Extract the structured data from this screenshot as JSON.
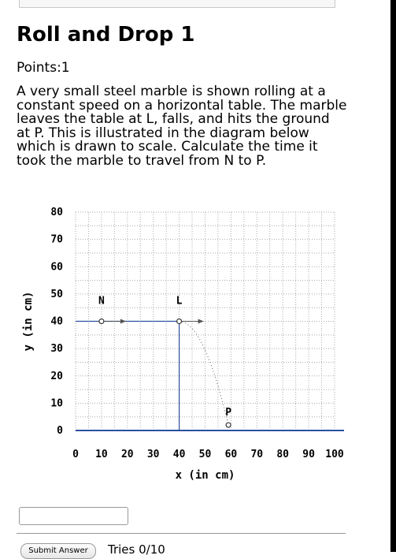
{
  "problem": {
    "title": "Roll and Drop 1",
    "points": "Points:1",
    "question": "A very small steel marble is shown rolling at a constant speed on a horizontal table. The marble leaves the table at L, falls, and hits the ground at P. This is illustrated in the diagram below which is drawn to scale. Calculate the time it took the marble to travel from N to P."
  },
  "chart_data": {
    "type": "scatter",
    "xlabel": "x (in cm)",
    "ylabel": "y (in cm)",
    "xlim": [
      0,
      100
    ],
    "ylim": [
      0,
      80
    ],
    "x_ticks": [
      "0",
      "10",
      "20",
      "30",
      "40",
      "50",
      "60",
      "70",
      "80",
      "90",
      "100"
    ],
    "y_ticks": [
      "0",
      "10",
      "20",
      "30",
      "40",
      "50",
      "60",
      "70",
      "80"
    ],
    "grid": true,
    "table": {
      "x_start": 0,
      "x_end": 40,
      "height": 40
    },
    "points": [
      {
        "label": "N",
        "x": 10,
        "y": 40
      },
      {
        "label": "L",
        "x": 40,
        "y": 40
      },
      {
        "label": "P",
        "x": 59,
        "y": 2
      }
    ]
  },
  "answer": {
    "value": ""
  },
  "footer": {
    "submit_label": "Submit Answer",
    "tries": "Tries 0/10"
  },
  "colors": {
    "table_line": "#2b4f9e",
    "grid": "#aaaaaa"
  }
}
